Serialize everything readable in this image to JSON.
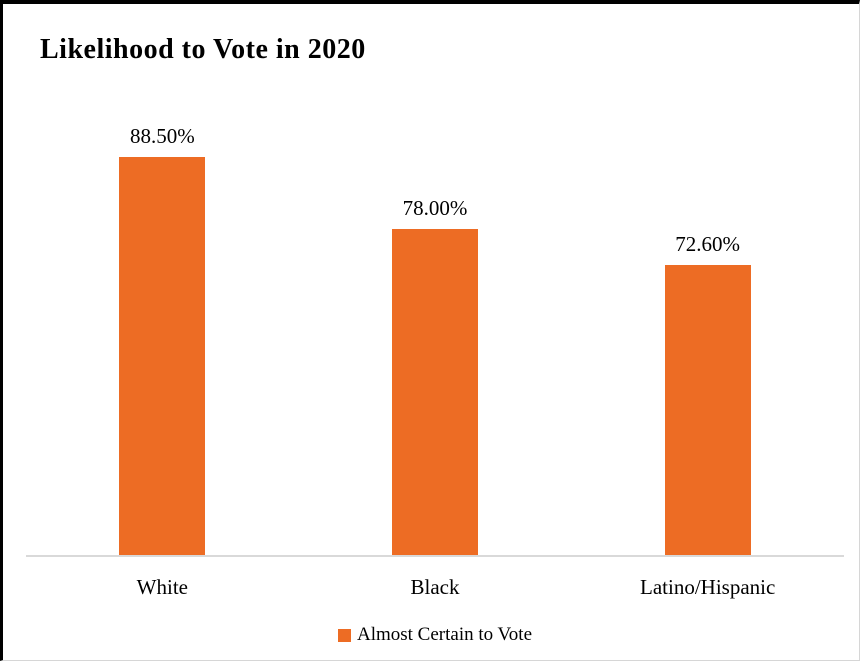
{
  "chart_data": {
    "type": "bar",
    "title": "Likelihood to Vote in 2020",
    "categories": [
      "White",
      "Black",
      "Latino/Hispanic"
    ],
    "series": [
      {
        "name": "Almost Certain to Vote",
        "values": [
          88.5,
          78.0,
          72.6
        ]
      }
    ],
    "value_labels": [
      "88.50%",
      "78.00%",
      "72.60%"
    ],
    "ylabel": "",
    "xlabel": "",
    "ylim": [
      30,
      100
    ],
    "grid": false,
    "legend_position": "bottom",
    "bar_color": "#ed6c24",
    "axis_line_color": "#d9d9d9"
  },
  "legend": {
    "label": "Almost Certain to Vote",
    "swatch_color": "#ed6c24"
  }
}
